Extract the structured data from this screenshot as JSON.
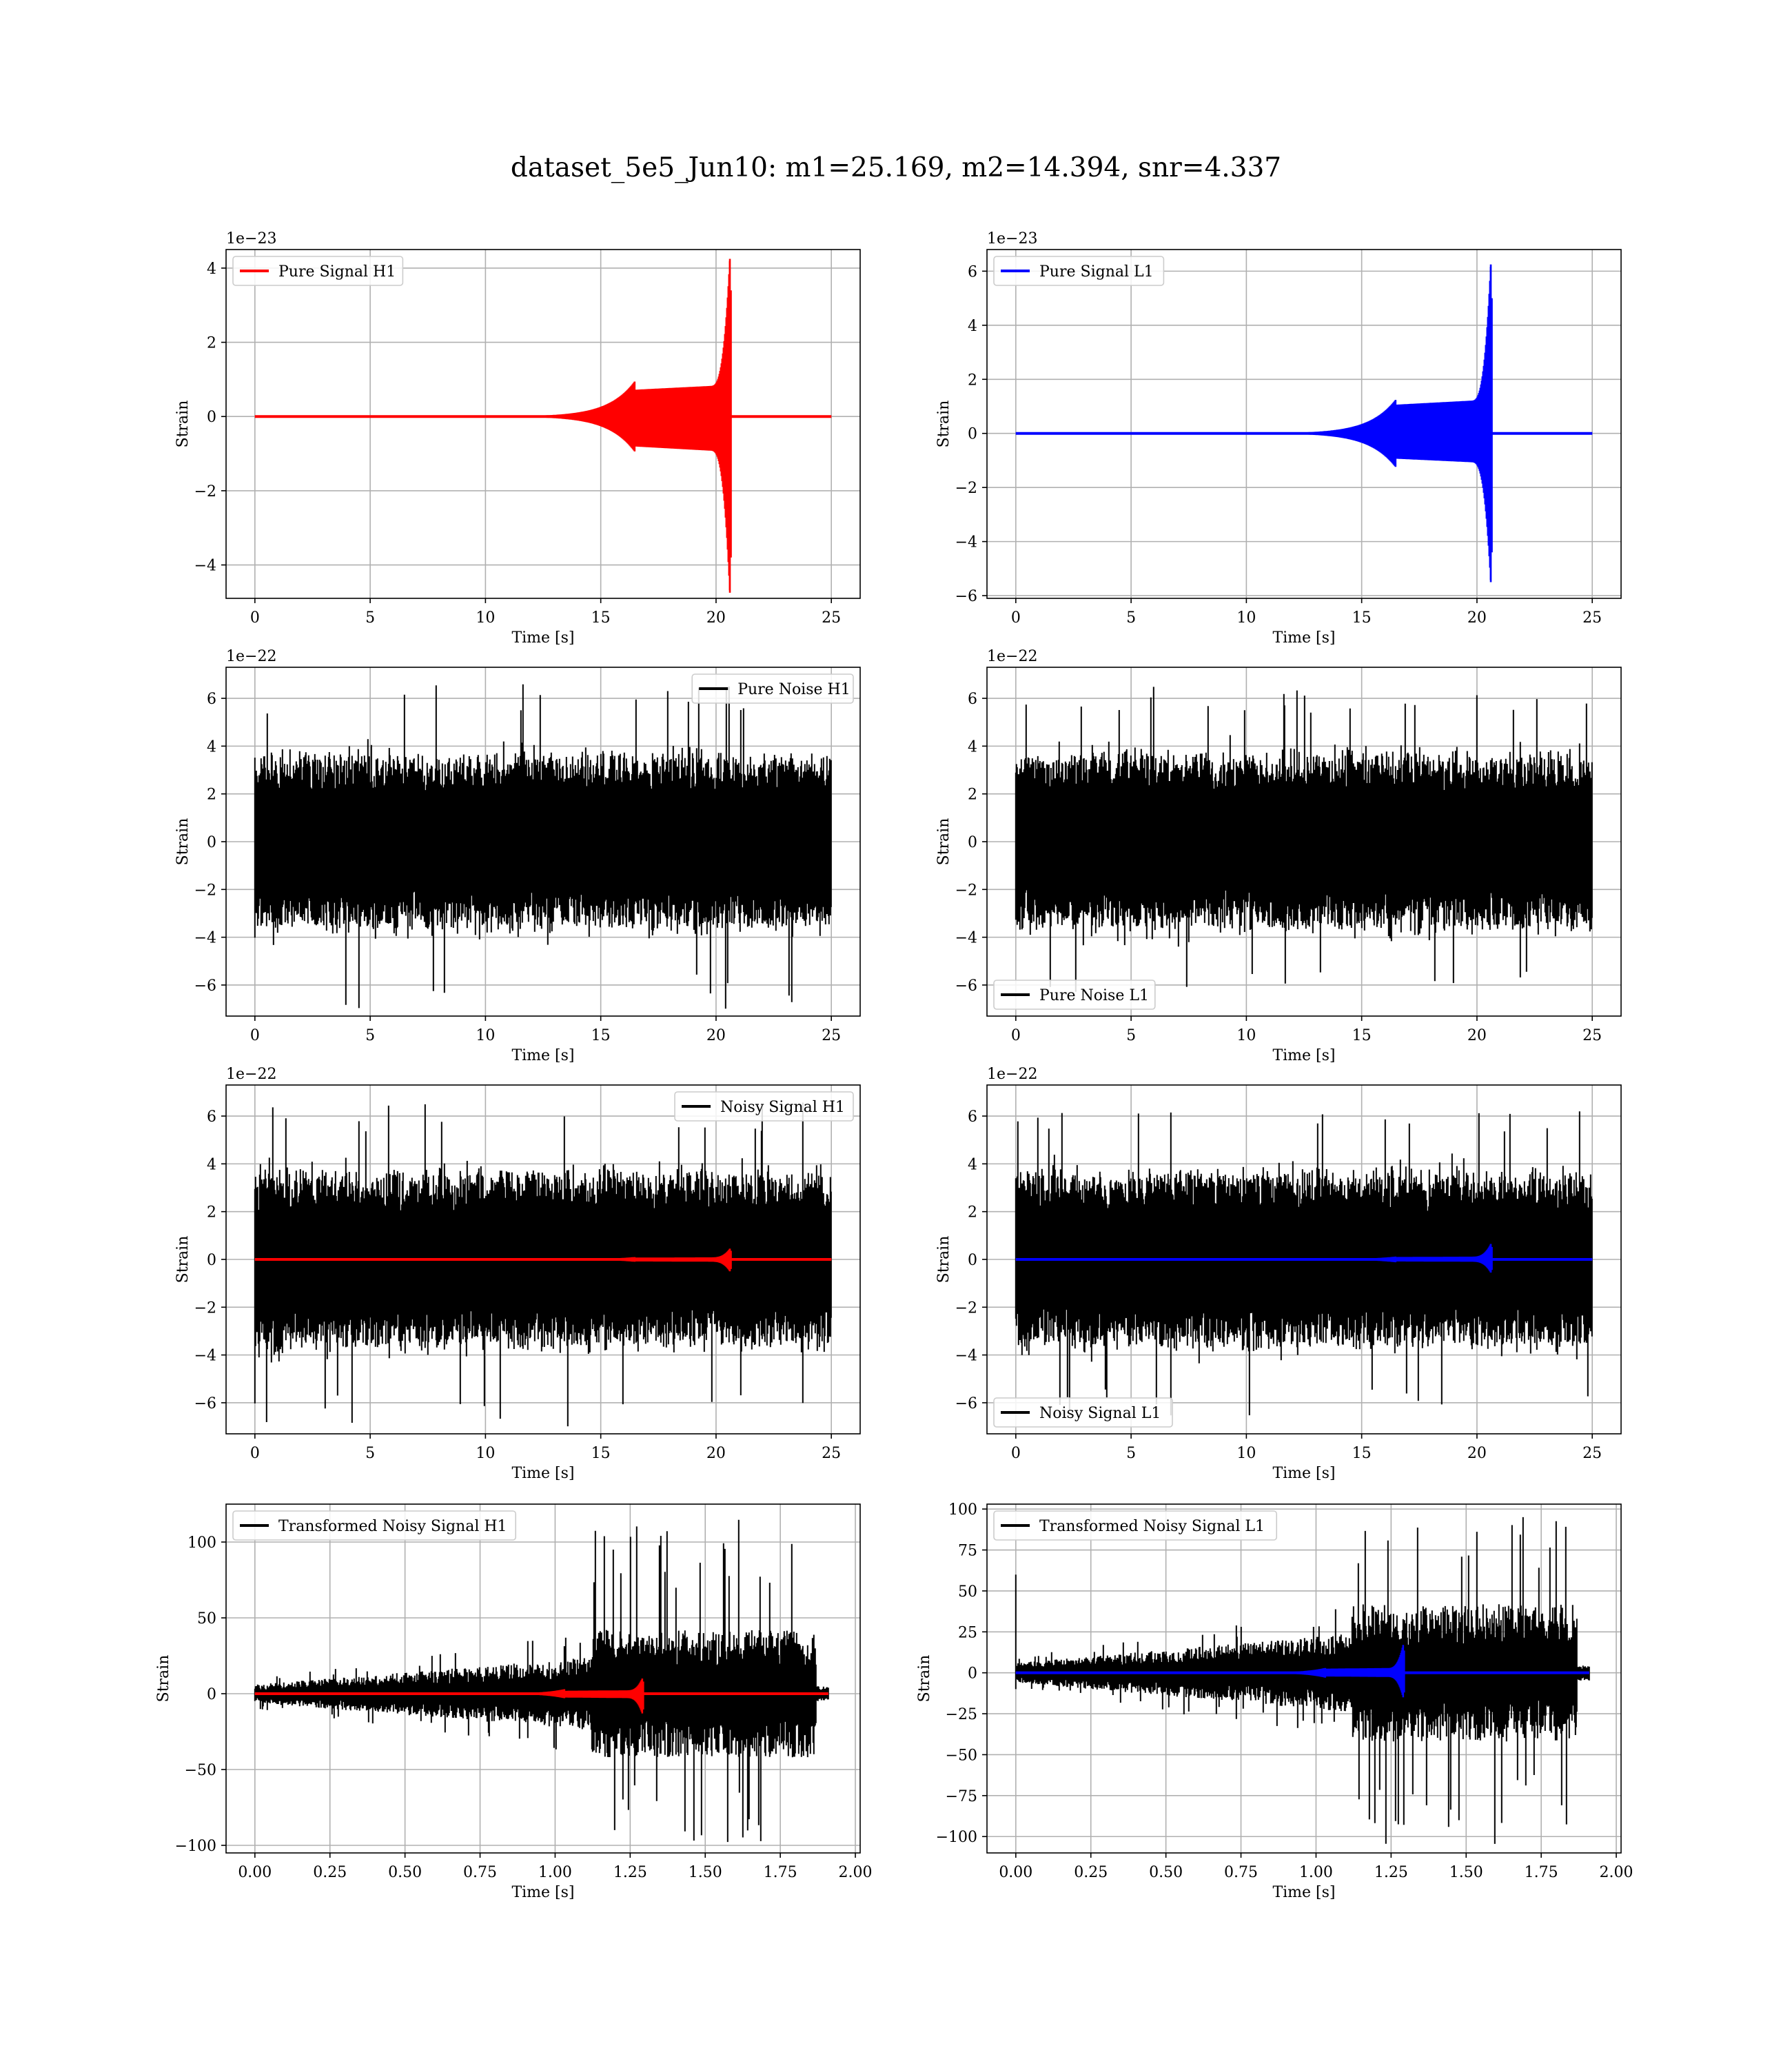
{
  "figure": {
    "title": "dataset_5e5_Jun10: m1=25.169, m2=14.394, snr=4.337"
  },
  "colors": {
    "h1_signal": "#ff0000",
    "l1_signal": "#0000ff",
    "noise": "#000000",
    "grid": "#b0b0b0",
    "axes": "#000000"
  },
  "chart_data": [
    {
      "type": "line",
      "xlabel": "Time [s]",
      "ylabel": "Strain",
      "offset_label": "1e−23",
      "xlim": [
        -1.25,
        26.25
      ],
      "ylim": [
        -4.9,
        4.5
      ],
      "xticks": [
        0,
        5,
        10,
        15,
        20,
        25
      ],
      "xtick_labels": [
        "0",
        "5",
        "10",
        "15",
        "20",
        "25"
      ],
      "yticks": [
        -4,
        -2,
        0,
        2,
        4
      ],
      "ytick_labels": [
        "−4",
        "−2",
        "0",
        "2",
        "4"
      ],
      "grid": true,
      "legend": "upper left",
      "series": [
        {
          "name": "Pure Signal H1",
          "color": "#ff0000",
          "kind": "chirp",
          "t_start": 0,
          "t_end": 25,
          "t_merge": 20.6,
          "peak_pos": 4.25,
          "peak_neg": -4.75,
          "plateau": 0.95
        }
      ]
    },
    {
      "type": "line",
      "xlabel": "Time [s]",
      "ylabel": "Strain",
      "offset_label": "1e−23",
      "xlim": [
        -1.25,
        26.25
      ],
      "ylim": [
        -6.1,
        6.8
      ],
      "xticks": [
        0,
        5,
        10,
        15,
        20,
        25
      ],
      "xtick_labels": [
        "0",
        "5",
        "10",
        "15",
        "20",
        "25"
      ],
      "yticks": [
        -6,
        -4,
        -2,
        0,
        2,
        4,
        6
      ],
      "ytick_labels": [
        "−6",
        "−4",
        "−2",
        "0",
        "2",
        "4",
        "6"
      ],
      "grid": true,
      "legend": "upper left",
      "series": [
        {
          "name": "Pure Signal L1",
          "color": "#0000ff",
          "kind": "chirp",
          "t_start": 0,
          "t_end": 25,
          "t_merge": 20.6,
          "peak_pos": 6.25,
          "peak_neg": -5.5,
          "plateau": 1.25
        }
      ]
    },
    {
      "type": "line",
      "xlabel": "Time [s]",
      "ylabel": "Strain",
      "offset_label": "1e−22",
      "xlim": [
        -1.25,
        26.25
      ],
      "ylim": [
        -7.3,
        7.3
      ],
      "xticks": [
        0,
        5,
        10,
        15,
        20,
        25
      ],
      "xtick_labels": [
        "0",
        "5",
        "10",
        "15",
        "20",
        "25"
      ],
      "yticks": [
        -6,
        -4,
        -2,
        0,
        2,
        4,
        6
      ],
      "ytick_labels": [
        "−6",
        "−4",
        "−2",
        "0",
        "2",
        "4",
        "6"
      ],
      "grid": true,
      "legend": "upper right",
      "series": [
        {
          "name": "Pure Noise H1",
          "color": "#000000",
          "kind": "noise",
          "t_start": 0,
          "t_end": 25,
          "envelope": 3.4,
          "spike_max": 6.6,
          "spike_min": -7.0
        }
      ]
    },
    {
      "type": "line",
      "xlabel": "Time [s]",
      "ylabel": "Strain",
      "offset_label": "1e−22",
      "xlim": [
        -1.25,
        26.25
      ],
      "ylim": [
        -7.3,
        7.3
      ],
      "xticks": [
        0,
        5,
        10,
        15,
        20,
        25
      ],
      "xtick_labels": [
        "0",
        "5",
        "10",
        "15",
        "20",
        "25"
      ],
      "yticks": [
        -6,
        -4,
        -2,
        0,
        2,
        4,
        6
      ],
      "ytick_labels": [
        "−6",
        "−4",
        "−2",
        "0",
        "2",
        "4",
        "6"
      ],
      "grid": true,
      "legend": "lower left",
      "series": [
        {
          "name": "Pure Noise L1",
          "color": "#000000",
          "kind": "noise",
          "t_start": 0,
          "t_end": 25,
          "envelope": 3.4,
          "spike_max": 6.5,
          "spike_min": -6.7
        }
      ]
    },
    {
      "type": "line",
      "xlabel": "Time [s]",
      "ylabel": "Strain",
      "offset_label": "1e−22",
      "xlim": [
        -1.25,
        26.25
      ],
      "ylim": [
        -7.3,
        7.3
      ],
      "xticks": [
        0,
        5,
        10,
        15,
        20,
        25
      ],
      "xtick_labels": [
        "0",
        "5",
        "10",
        "15",
        "20",
        "25"
      ],
      "yticks": [
        -6,
        -4,
        -2,
        0,
        2,
        4,
        6
      ],
      "ytick_labels": [
        "−6",
        "−4",
        "−2",
        "0",
        "2",
        "4",
        "6"
      ],
      "grid": true,
      "legend": "upper right",
      "series": [
        {
          "name": "Noisy Signal H1",
          "color": "#000000",
          "kind": "noise",
          "t_start": 0,
          "t_end": 25,
          "envelope": 3.4,
          "spike_max": 6.6,
          "spike_min": -7.0
        },
        {
          "color": "#ff0000",
          "kind": "chirp",
          "t_start": 0,
          "t_end": 25,
          "t_merge": 20.6,
          "peak_pos": 0.45,
          "peak_neg": -0.5,
          "plateau": 0.1
        }
      ]
    },
    {
      "type": "line",
      "xlabel": "Time [s]",
      "ylabel": "Strain",
      "offset_label": "1e−22",
      "xlim": [
        -1.25,
        26.25
      ],
      "ylim": [
        -7.3,
        7.3
      ],
      "xticks": [
        0,
        5,
        10,
        15,
        20,
        25
      ],
      "xtick_labels": [
        "0",
        "5",
        "10",
        "15",
        "20",
        "25"
      ],
      "yticks": [
        -6,
        -4,
        -2,
        0,
        2,
        4,
        6
      ],
      "ytick_labels": [
        "−6",
        "−4",
        "−2",
        "0",
        "2",
        "4",
        "6"
      ],
      "grid": true,
      "legend": "lower left",
      "series": [
        {
          "name": "Noisy Signal L1",
          "color": "#000000",
          "kind": "noise",
          "t_start": 0,
          "t_end": 25,
          "envelope": 3.4,
          "spike_max": 6.5,
          "spike_min": -6.7
        },
        {
          "color": "#0000ff",
          "kind": "chirp",
          "t_start": 0,
          "t_end": 25,
          "t_merge": 20.6,
          "peak_pos": 0.65,
          "peak_neg": -0.55,
          "plateau": 0.12
        }
      ]
    },
    {
      "type": "line",
      "xlabel": "Time [s]",
      "ylabel": "Strain",
      "offset_label": "",
      "xlim": [
        -0.096,
        2.016
      ],
      "ylim": [
        -105,
        125
      ],
      "xticks": [
        0,
        0.25,
        0.5,
        0.75,
        1.0,
        1.25,
        1.5,
        1.75,
        2.0
      ],
      "xtick_labels": [
        "0.00",
        "0.25",
        "0.50",
        "0.75",
        "1.00",
        "1.25",
        "1.50",
        "1.75",
        "2.00"
      ],
      "yticks": [
        -100,
        -50,
        0,
        50,
        100
      ],
      "ytick_labels": [
        "−100",
        "−50",
        "0",
        "50",
        "100"
      ],
      "grid": true,
      "legend": "upper left",
      "series": [
        {
          "name": "Transformed Noisy Signal H1",
          "color": "#000000",
          "kind": "whitened",
          "t_start": 0,
          "t_end": 1.91,
          "jump_t": 1.12,
          "end_t": 1.87,
          "spike_max": 118,
          "spike_min": -98
        },
        {
          "color": "#ff0000",
          "kind": "chirp",
          "t_start": 0,
          "t_end": 1.91,
          "t_merge": 1.29,
          "peak_pos": 10,
          "peak_neg": -13,
          "plateau": 3
        }
      ]
    },
    {
      "type": "line",
      "xlabel": "Time [s]",
      "ylabel": "Strain",
      "offset_label": "",
      "xlim": [
        -0.096,
        2.016
      ],
      "ylim": [
        -110,
        103
      ],
      "xticks": [
        0,
        0.25,
        0.5,
        0.75,
        1.0,
        1.25,
        1.5,
        1.75,
        2.0
      ],
      "xtick_labels": [
        "0.00",
        "0.25",
        "0.50",
        "0.75",
        "1.00",
        "1.25",
        "1.50",
        "1.75",
        "2.00"
      ],
      "yticks": [
        -100,
        -75,
        -50,
        -25,
        0,
        25,
        50,
        75,
        100
      ],
      "ytick_labels": [
        "−100",
        "−75",
        "−50",
        "−25",
        "0",
        "25",
        "50",
        "75",
        "100"
      ],
      "grid": true,
      "legend": "upper left",
      "series": [
        {
          "name": "Transformed Noisy Signal L1",
          "color": "#000000",
          "kind": "whitened",
          "t_start": 0,
          "t_end": 1.91,
          "jump_t": 1.12,
          "end_t": 1.87,
          "spike_max": 96,
          "spike_min": -105,
          "start_spike": 60
        },
        {
          "color": "#0000ff",
          "kind": "chirp",
          "t_start": 0,
          "t_end": 1.91,
          "t_merge": 1.29,
          "peak_pos": 17,
          "peak_neg": -15,
          "plateau": 3
        }
      ]
    }
  ]
}
